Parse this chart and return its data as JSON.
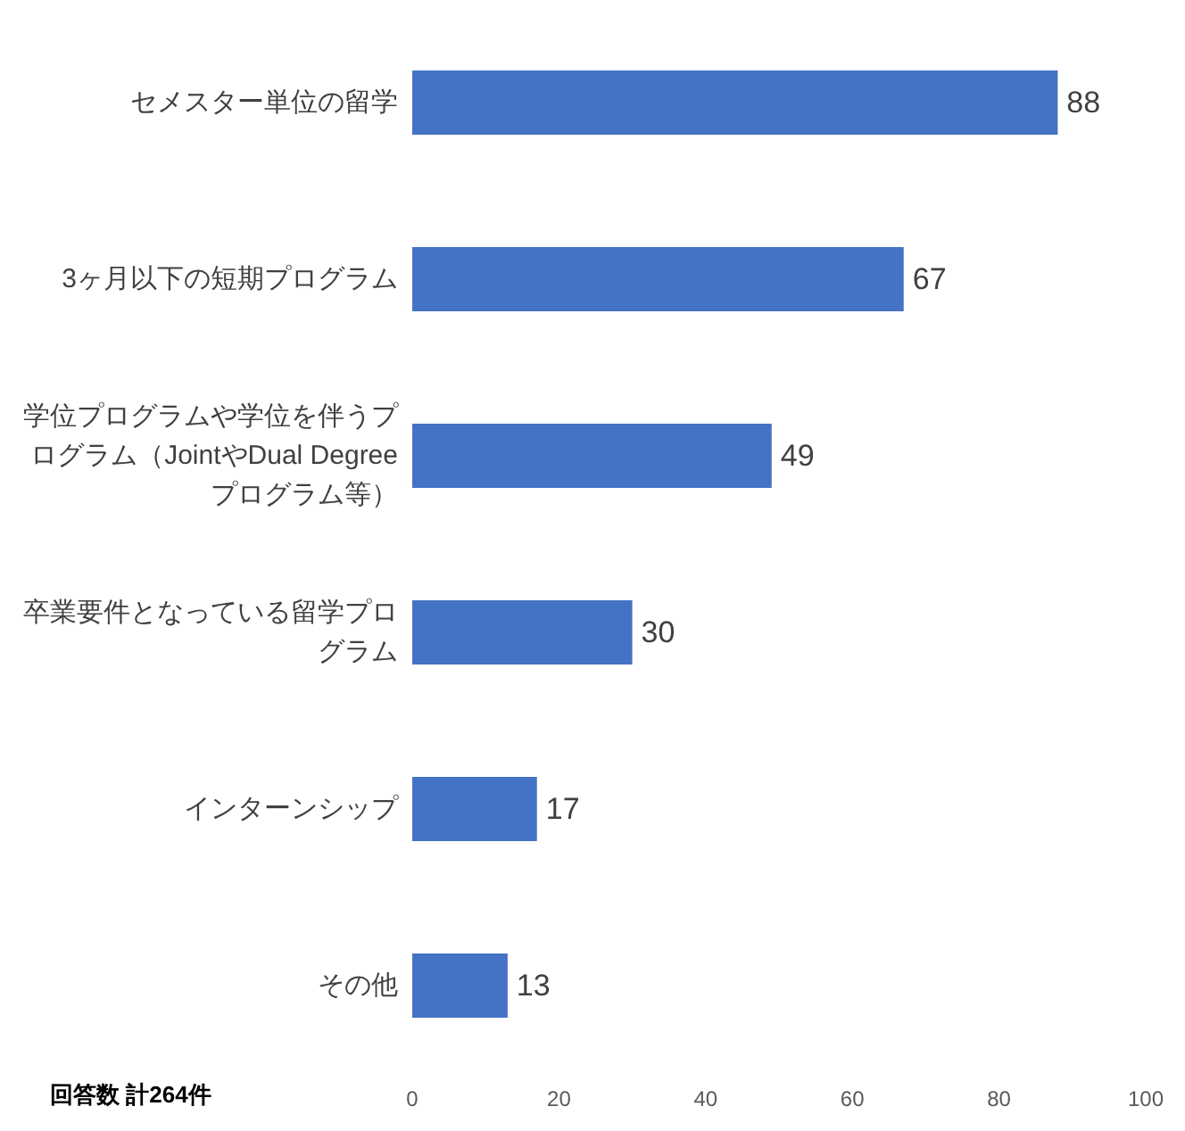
{
  "chart_data": {
    "type": "bar",
    "orientation": "horizontal",
    "categories": [
      "セメスター単位の留学",
      "3ヶ月以下の短期プログラム",
      "学位プログラムや学位を伴うプログラム（JointやDual Degreeプログラム等）",
      "卒業要件となっている留学プログラム",
      "インターンシップ",
      "その他"
    ],
    "values": [
      88,
      67,
      49,
      30,
      17,
      13
    ],
    "color": "#4472c4",
    "xlim": [
      0,
      100
    ],
    "xticks": [
      0,
      20,
      40,
      60,
      80,
      100
    ],
    "data_labels": true,
    "annotations": [
      "回答数 計264件"
    ]
  }
}
